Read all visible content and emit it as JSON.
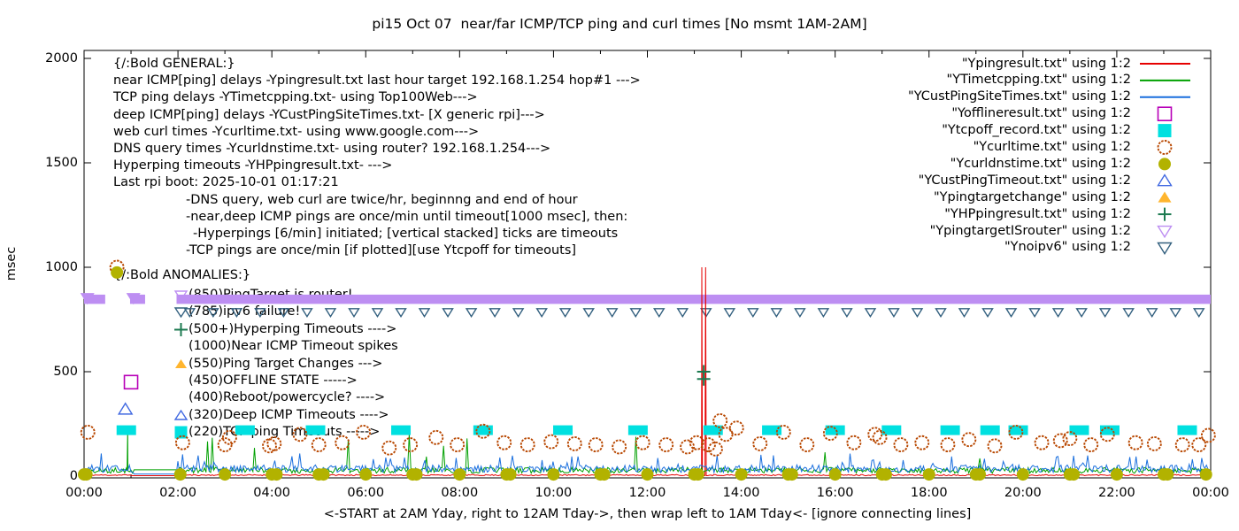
{
  "title": "pi15 Oct 07  near/far ICMP/TCP ping and curl times [No msmt 1AM-2AM]",
  "axes": {
    "ylabel": "msec",
    "xlabel": "<-START at 2AM Yday, right to 12AM Tday->, then wrap left to 1AM Tday<- [ignore connecting lines]"
  },
  "colors": {
    "red": "#e60000",
    "green": "#00a000",
    "blue": "#1a6fde",
    "magenta": "#b800b8",
    "cyan": "#00e0e0",
    "orange_brown": "#b84700",
    "olive": "#b2b200",
    "blue_triangle": "#4169e1",
    "orange_triangle": "#ffb52e",
    "dark_green": "#1c7a50",
    "violet": "#bd8ef2",
    "slate": "#33607f",
    "axis": "#000000"
  },
  "legend": [
    {
      "label": "\"Ypingresult.txt\" using 1:2",
      "sample": "line",
      "color": "red"
    },
    {
      "label": "\"YTimetcpping.txt\" using 1:2",
      "sample": "line",
      "color": "green"
    },
    {
      "label": "\"YCustPingSiteTimes.txt\" using 1:2",
      "sample": "line",
      "color": "blue"
    },
    {
      "label": "\"Yofflineresult.txt\" using 1:2",
      "sample": "square-open",
      "color": "magenta"
    },
    {
      "label": "\"Ytcpoff_record.txt\" using 1:2",
      "sample": "square-fill",
      "color": "cyan"
    },
    {
      "label": "\"Ycurltime.txt\" using 1:2",
      "sample": "circle-open",
      "color": "orange_brown"
    },
    {
      "label": "\"Ycurldnstime.txt\" using 1:2",
      "sample": "circle-fill",
      "color": "olive"
    },
    {
      "label": "\"YCustPingTimeout.txt\" using 1:2",
      "sample": "tri-up-open",
      "color": "blue_triangle"
    },
    {
      "label": "\"Ypingtargetchange\" using 1:2",
      "sample": "tri-up-fill",
      "color": "orange_triangle"
    },
    {
      "label": "\"YHPpingresult.txt\" using 1:2",
      "sample": "plus",
      "color": "dark_green"
    },
    {
      "label": "\"YpingtargetISrouter\" using 1:2",
      "sample": "tri-down-open",
      "color": "violet"
    },
    {
      "label": "\"Ynoipv6\" using 1:2",
      "sample": "tri-down-open",
      "color": "slate"
    }
  ],
  "annotations": {
    "general": [
      {
        "text": "{/:Bold GENERAL:}",
        "indent": 0
      },
      {
        "text": "near ICMP[ping] delays -Ypingresult.txt last hour target 192.168.1.254 hop#1 --->",
        "indent": 0
      },
      {
        "text": "TCP ping delays -YTimetcpping.txt- using Top100Web--->",
        "indent": 0
      },
      {
        "text": "deep ICMP[ping] delays -YCustPingSiteTimes.txt- [X generic rpi]--->",
        "indent": 0
      },
      {
        "text": "web curl times -Ycurltime.txt- using www.google.com--->",
        "indent": 0
      },
      {
        "text": "DNS query times -Ycurldnstime.txt- using router? 192.168.1.254--->",
        "indent": 0
      },
      {
        "text": "Hyperping timeouts -YHPpingresult.txt- --->",
        "indent": 0
      },
      {
        "text": "Last rpi boot: 2025-10-01 01:17:21",
        "indent": 0
      },
      {
        "text": "-DNS query, web curl are twice/hr, beginnng and end of hour",
        "indent": 82
      },
      {
        "text": "-near,deep ICMP pings are once/min until timeout[1000 msec], then:",
        "indent": 82
      },
      {
        "text": "-Hyperpings [6/min] initiated; [vertical stacked] ticks are timeouts",
        "indent": 90
      },
      {
        "text": "-TCP pings are once/min [if plotted][use Ytcpoff for timeouts]",
        "indent": 82
      }
    ],
    "anomalies_header": "{/:Bold ANOMALIES:}",
    "anomalies": [
      {
        "marker": "tri-down-open",
        "color": "violet",
        "text": "(850)PingTarget is router!"
      },
      {
        "marker": "tri-down-open",
        "color": "slate",
        "text": "(785)ipv6 failure!"
      },
      {
        "marker": "plus",
        "color": "dark_green",
        "text": "(500+)Hyperping Timeouts ---->"
      },
      {
        "marker": "none",
        "color": "axis",
        "text": "(1000)Near ICMP Timeout spikes"
      },
      {
        "marker": "tri-up-fill",
        "color": "orange_triangle",
        "text": "(550)Ping Target Changes --->"
      },
      {
        "marker": "none",
        "color": "axis",
        "text": "(450)OFFLINE STATE ----->"
      },
      {
        "marker": "none",
        "color": "axis",
        "text": "(400)Reboot/powercycle? ---->"
      },
      {
        "marker": "tri-up-open",
        "color": "blue_triangle",
        "text": "(320)Deep ICMP Timeouts ---->"
      },
      {
        "marker": "square-fill",
        "color": "cyan",
        "text": "(220)TCP ping Timeouts ----->"
      }
    ]
  },
  "chart_data": {
    "type": "line",
    "title": "pi15 Oct 07  near/far ICMP/TCP ping and curl times [No msmt 1AM-2AM]",
    "xlabel": "<-START at 2AM Yday, right to 12AM Tday->, then wrap left to 1AM Tday<- [ignore connecting lines]",
    "ylabel": "msec",
    "x_unit": "hours of day",
    "xlim": [
      0,
      24
    ],
    "ylim": [
      0,
      2000
    ],
    "x_tick_hours": [
      0,
      2,
      4,
      6,
      8,
      10,
      12,
      14,
      16,
      18,
      20,
      22,
      24
    ],
    "x_tick_labels": [
      "00:00",
      "02:00",
      "04:00",
      "06:00",
      "08:00",
      "10:00",
      "12:00",
      "14:00",
      "16:00",
      "18:00",
      "20:00",
      "22:00",
      "00:00"
    ],
    "y_ticks": [
      0,
      500,
      1000,
      1500,
      2000
    ],
    "no_measurement_gap_hours": [
      1.05,
      1.97
    ],
    "series": [
      {
        "file": "Ypingresult.txt",
        "desc": "near ICMP ping delay",
        "color": "red",
        "baseline_msec": 4,
        "noise_msec": 3,
        "gap_value_msec": 2,
        "spikes": [
          [
            13.16,
            1000
          ],
          [
            13.24,
            1000
          ]
        ]
      },
      {
        "file": "YTimetcpping.txt",
        "desc": "TCP ping delay Top100Web",
        "color": "green",
        "baseline_msec": 24,
        "noise_msec": 14,
        "gap_value_msec": 30,
        "random_spikes": {
          "prob": 0.03,
          "range": [
            70,
            225
          ]
        },
        "spikes": [
          [
            0.93,
            225
          ]
        ]
      },
      {
        "file": "YCustPingSiteTimes.txt",
        "desc": "deep ICMP ping delay",
        "color": "blue",
        "baseline_msec": 30,
        "noise_msec": 18,
        "gap_value_msec": 10,
        "random_spikes": {
          "prob": 0.05,
          "range": [
            55,
            110
          ]
        },
        "spikes": []
      }
    ],
    "scatter": [
      {
        "file": "Ytcpoff_record.txt",
        "desc": "TCP ping timeouts",
        "shape": "rect-fill",
        "color": "cyan",
        "msec": 220,
        "hours": [
          0.9,
          3.43,
          4.93,
          6.75,
          8.5,
          10.2,
          11.8,
          13.4,
          14.65,
          16.0,
          17.2,
          18.45,
          19.3,
          19.9,
          21.2,
          21.85,
          23.5
        ]
      },
      {
        "file": "Yofflineresult.txt",
        "desc": "OFFLINE STATE",
        "shape": "square-open",
        "color": "magenta",
        "points": [
          [
            1.0,
            450
          ]
        ]
      },
      {
        "file": "YCustPingTimeout.txt",
        "desc": "deep ICMP timeouts",
        "shape": "tri-up-open",
        "color": "blue_triangle",
        "points": [
          [
            0.88,
            320
          ]
        ]
      },
      {
        "file": "YHPpingresult.txt",
        "desc": "Hyperping timeouts (vertical stacked)",
        "shape": "plus",
        "color": "dark_green",
        "points": [
          [
            13.2,
            500
          ],
          [
            13.2,
            465
          ]
        ]
      },
      {
        "file": "Ycurltime.txt",
        "desc": "web curl times twice/hr",
        "shape": "circle-open",
        "color": "orange_brown",
        "points": [
          [
            0.08,
            210
          ],
          [
            0.7,
            1000
          ],
          [
            2.1,
            160
          ],
          [
            3.0,
            150
          ],
          [
            3.1,
            185
          ],
          [
            3.95,
            145
          ],
          [
            4.05,
            155
          ],
          [
            4.6,
            200
          ],
          [
            5.0,
            150
          ],
          [
            5.5,
            160
          ],
          [
            5.95,
            210
          ],
          [
            6.5,
            135
          ],
          [
            6.95,
            150
          ],
          [
            7.5,
            185
          ],
          [
            7.95,
            150
          ],
          [
            8.5,
            215
          ],
          [
            8.95,
            160
          ],
          [
            9.45,
            150
          ],
          [
            9.95,
            165
          ],
          [
            10.45,
            155
          ],
          [
            10.9,
            150
          ],
          [
            11.4,
            140
          ],
          [
            11.9,
            160
          ],
          [
            12.4,
            150
          ],
          [
            12.85,
            140
          ],
          [
            13.05,
            160
          ],
          [
            13.3,
            150
          ],
          [
            13.45,
            130
          ],
          [
            13.55,
            265
          ],
          [
            13.67,
            200
          ],
          [
            13.9,
            230
          ],
          [
            14.4,
            155
          ],
          [
            14.9,
            210
          ],
          [
            15.4,
            150
          ],
          [
            15.9,
            205
          ],
          [
            16.4,
            160
          ],
          [
            16.85,
            200
          ],
          [
            16.95,
            185
          ],
          [
            17.4,
            150
          ],
          [
            17.85,
            160
          ],
          [
            18.4,
            150
          ],
          [
            18.85,
            175
          ],
          [
            19.4,
            145
          ],
          [
            19.85,
            210
          ],
          [
            20.4,
            160
          ],
          [
            20.8,
            170
          ],
          [
            21.0,
            180
          ],
          [
            21.45,
            150
          ],
          [
            21.8,
            200
          ],
          [
            22.4,
            160
          ],
          [
            22.8,
            155
          ],
          [
            23.4,
            150
          ],
          [
            23.75,
            150
          ],
          [
            23.95,
            195
          ]
        ]
      },
      {
        "file": "Ycurldnstime.txt",
        "desc": "DNS query times twice/hr",
        "shape": "circle-fill",
        "color": "olive",
        "msec": 8,
        "hours": [
          0,
          0.05,
          2.05,
          3,
          4,
          4.1,
          5,
          5.1,
          6,
          7,
          7.08,
          8,
          9,
          9.08,
          10,
          11,
          11.08,
          12,
          13,
          13.08,
          14,
          15,
          15.08,
          16,
          17,
          17.08,
          18,
          19,
          19.08,
          20,
          21,
          21.08,
          22,
          23,
          23.08,
          23.9
        ],
        "points": [
          [
            0.7,
            975
          ]
        ]
      },
      {
        "file": "Ynoipv6",
        "desc": "ipv6 failure row",
        "shape": "tri-down-open",
        "color": "slate",
        "msec": 785,
        "hours_every": 0.5,
        "hours_range": [
          2.25,
          23.75
        ],
        "size": 11
      },
      {
        "file": "YpingtargetISrouter",
        "desc": "PingTarget is router markers",
        "shape": "tri-down-fill",
        "color": "violet",
        "points": [
          [
            0.07,
            852
          ],
          [
            1.05,
            852
          ]
        ],
        "size": 16
      }
    ],
    "band": {
      "file": "YpingtargetISrouter",
      "desc": "dense down-triangles form solid band",
      "msec": 850,
      "segments_hours": [
        [
          0,
          0.45
        ],
        [
          0.98,
          1.3
        ],
        [
          1.97,
          24
        ]
      ]
    }
  }
}
